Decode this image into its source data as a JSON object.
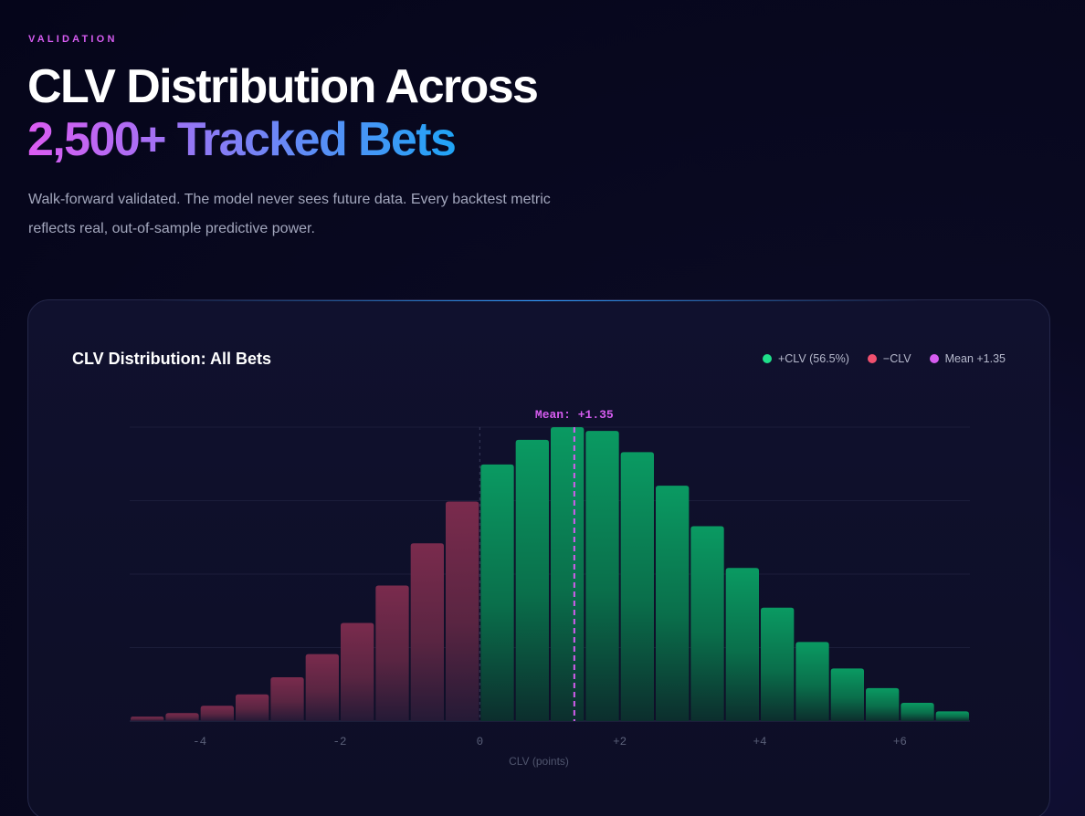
{
  "eyebrow": "VALIDATION",
  "headline": {
    "line1": "CLV Distribution Across",
    "line2": "2,500+ Tracked Bets"
  },
  "description": "Walk-forward validated. The model never sees future data. Every backtest metric reflects real, out-of-sample predictive power.",
  "card": {
    "title": "CLV Distribution: All Bets",
    "legend": [
      {
        "label": "+CLV (56.5%)",
        "color": "#1fe08a"
      },
      {
        "label": "−CLV",
        "color": "#f0506e"
      },
      {
        "label": "Mean +1.35",
        "color": "#d65cf0"
      }
    ]
  },
  "chart_data": {
    "type": "bar",
    "title": "CLV Distribution: All Bets",
    "xlabel": "CLV (points)",
    "ylabel": "",
    "x_ticks": [
      "-4",
      "-2",
      "0",
      "+2",
      "+4",
      "+6"
    ],
    "x_tick_values": [
      -4,
      -2,
      0,
      2,
      4,
      6
    ],
    "xlim": [
      -5,
      7
    ],
    "ylim": [
      0,
      100
    ],
    "grid": true,
    "bin_width": 0.5,
    "bin_centers": [
      -4.75,
      -4.25,
      -3.75,
      -3.25,
      -2.75,
      -2.25,
      -1.75,
      -1.25,
      -0.75,
      -0.25,
      0.25,
      0.75,
      1.25,
      1.75,
      2.25,
      2.75,
      3.25,
      3.75,
      4.25,
      4.75,
      5.25,
      5.75,
      6.25,
      6.75
    ],
    "values": [
      1.5,
      2.7,
      5.2,
      9.1,
      14.9,
      22.8,
      33.4,
      46.1,
      60.5,
      74.7,
      87.3,
      95.7,
      100,
      98.7,
      91.5,
      80.1,
      66.3,
      52.1,
      38.6,
      26.9,
      17.9,
      11.2,
      6.2,
      3.3
    ],
    "series": [
      {
        "name": "+CLV (56.5%)",
        "color": "#1fe08a"
      },
      {
        "name": "−CLV",
        "color": "#f0506e"
      }
    ],
    "mean": {
      "value": 1.35,
      "label": "Mean: +1.35",
      "color": "#d65cf0"
    },
    "zero_line": 0
  }
}
